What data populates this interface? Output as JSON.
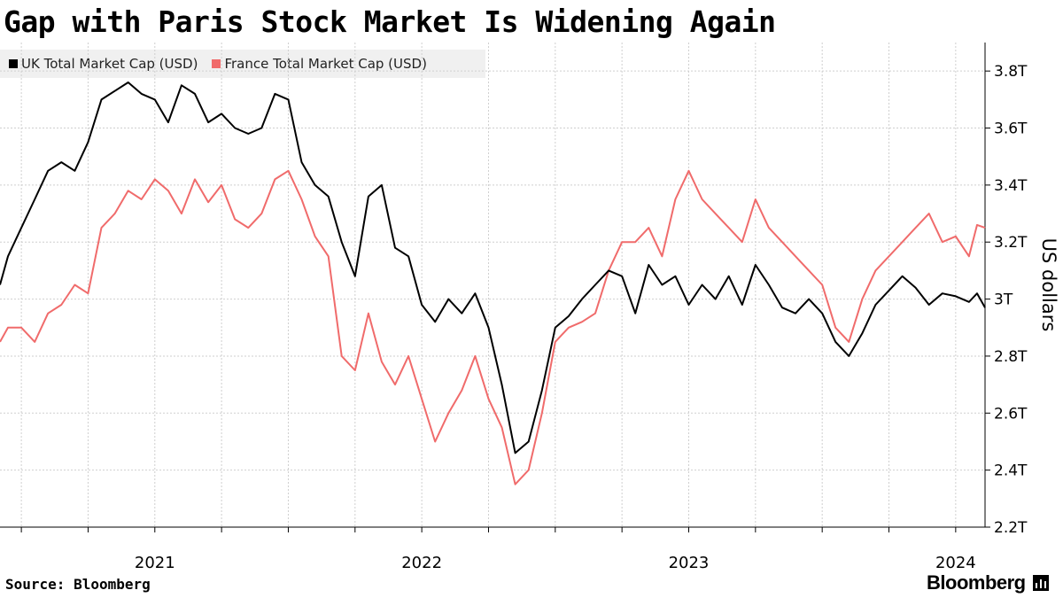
{
  "title": "Gap with Paris Stock Market Is Widening Again",
  "legend": [
    {
      "label": "UK Total Market Cap (USD)",
      "color": "#000000"
    },
    {
      "label": "France Total Market Cap (USD)",
      "color": "#f06b6b"
    }
  ],
  "footer": {
    "source": "Source: Bloomberg",
    "brand": "Bloomberg"
  },
  "chart_data": {
    "type": "line",
    "title": "Gap with Paris Stock Market Is Widening Again",
    "ylabel": "US dollars",
    "ylim": [
      2.2,
      3.9
    ],
    "x_range": [
      2020.42,
      2024.11
    ],
    "yticks": [
      {
        "value": 2.2,
        "label": "2.2T"
      },
      {
        "value": 2.4,
        "label": "2.4T"
      },
      {
        "value": 2.6,
        "label": "2.6T"
      },
      {
        "value": 2.8,
        "label": "2.8T"
      },
      {
        "value": 3.0,
        "label": "3T"
      },
      {
        "value": 3.2,
        "label": "3.2T"
      },
      {
        "value": 3.4,
        "label": "3.4T"
      },
      {
        "value": 3.6,
        "label": "3.6T"
      },
      {
        "value": 3.8,
        "label": "3.8T"
      }
    ],
    "xticks": [
      {
        "value": 2021.0,
        "label": "2021"
      },
      {
        "value": 2022.0,
        "label": "2022"
      },
      {
        "value": 2023.0,
        "label": "2023"
      },
      {
        "value": 2024.0,
        "label": "2024"
      }
    ],
    "x_gridlines": [
      2020.5,
      2020.75,
      2021.0,
      2021.25,
      2021.5,
      2021.75,
      2022.0,
      2022.25,
      2022.5,
      2022.75,
      2023.0,
      2023.25,
      2023.5,
      2023.75,
      2024.0
    ],
    "grid": true,
    "x": [
      2020.42,
      2020.45,
      2020.5,
      2020.55,
      2020.6,
      2020.65,
      2020.7,
      2020.75,
      2020.8,
      2020.85,
      2020.9,
      2020.95,
      2021.0,
      2021.05,
      2021.1,
      2021.15,
      2021.2,
      2021.25,
      2021.3,
      2021.35,
      2021.4,
      2021.45,
      2021.5,
      2021.55,
      2021.6,
      2021.65,
      2021.7,
      2021.75,
      2021.8,
      2021.85,
      2021.9,
      2021.95,
      2022.0,
      2022.05,
      2022.1,
      2022.15,
      2022.2,
      2022.25,
      2022.3,
      2022.35,
      2022.4,
      2022.45,
      2022.5,
      2022.55,
      2022.6,
      2022.65,
      2022.7,
      2022.75,
      2022.8,
      2022.85,
      2022.9,
      2022.95,
      2023.0,
      2023.05,
      2023.1,
      2023.15,
      2023.2,
      2023.25,
      2023.3,
      2023.35,
      2023.4,
      2023.45,
      2023.5,
      2023.55,
      2023.6,
      2023.65,
      2023.7,
      2023.75,
      2023.8,
      2023.85,
      2023.9,
      2023.95,
      2024.0,
      2024.05,
      2024.08,
      2024.11
    ],
    "series": [
      {
        "name": "UK Total Market Cap (USD)",
        "color": "#000000",
        "values": [
          3.05,
          3.15,
          3.25,
          3.35,
          3.45,
          3.48,
          3.45,
          3.55,
          3.7,
          3.73,
          3.76,
          3.72,
          3.7,
          3.62,
          3.75,
          3.72,
          3.62,
          3.65,
          3.6,
          3.58,
          3.6,
          3.72,
          3.7,
          3.48,
          3.4,
          3.36,
          3.2,
          3.08,
          3.36,
          3.4,
          3.18,
          3.15,
          2.98,
          2.92,
          3.0,
          2.95,
          3.02,
          2.9,
          2.7,
          2.46,
          2.5,
          2.68,
          2.9,
          2.94,
          3.0,
          3.05,
          3.1,
          3.08,
          2.95,
          3.12,
          3.05,
          3.08,
          2.98,
          3.05,
          3.0,
          3.08,
          2.98,
          3.12,
          3.05,
          2.97,
          2.95,
          3.0,
          2.95,
          2.85,
          2.8,
          2.88,
          2.98,
          3.03,
          3.08,
          3.04,
          2.98,
          3.02,
          3.01,
          2.99,
          3.02,
          2.97
        ]
      },
      {
        "name": "France Total Market Cap (USD)",
        "color": "#f06b6b",
        "values": [
          2.85,
          2.9,
          2.9,
          2.85,
          2.95,
          2.98,
          3.05,
          3.02,
          3.25,
          3.3,
          3.38,
          3.35,
          3.42,
          3.38,
          3.3,
          3.42,
          3.34,
          3.4,
          3.28,
          3.25,
          3.3,
          3.42,
          3.45,
          3.35,
          3.22,
          3.15,
          2.8,
          2.75,
          2.95,
          2.78,
          2.7,
          2.8,
          2.65,
          2.5,
          2.6,
          2.68,
          2.8,
          2.65,
          2.55,
          2.35,
          2.4,
          2.6,
          2.85,
          2.9,
          2.92,
          2.95,
          3.1,
          3.2,
          3.2,
          3.25,
          3.15,
          3.35,
          3.45,
          3.35,
          3.3,
          3.25,
          3.2,
          3.35,
          3.25,
          3.2,
          3.15,
          3.1,
          3.05,
          2.9,
          2.85,
          3.0,
          3.1,
          3.15,
          3.2,
          3.25,
          3.3,
          3.2,
          3.22,
          3.15,
          3.26,
          3.25
        ]
      }
    ]
  }
}
